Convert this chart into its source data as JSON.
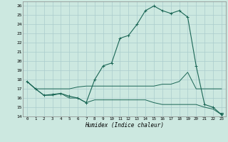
{
  "title": "",
  "xlabel": "Humidex (Indice chaleur)",
  "bg_color": "#cce8e0",
  "grid_color": "#aacccc",
  "line_color": "#1a6655",
  "xlim": [
    -0.5,
    23.5
  ],
  "ylim": [
    14,
    26.5
  ],
  "yticks": [
    14,
    15,
    16,
    17,
    18,
    19,
    20,
    21,
    22,
    23,
    24,
    25,
    26
  ],
  "xticks": [
    0,
    1,
    2,
    3,
    4,
    5,
    6,
    7,
    8,
    9,
    10,
    11,
    12,
    13,
    14,
    15,
    16,
    17,
    18,
    19,
    20,
    21,
    22,
    23
  ],
  "xtick_labels": [
    "0",
    "1",
    "2",
    "3",
    "4",
    "5",
    "6",
    "7",
    "8",
    "9",
    "10",
    "11",
    "12",
    "13",
    "14",
    "15",
    "16",
    "17",
    "18",
    "19",
    "20",
    "21",
    "22",
    "23"
  ],
  "main_line_x": [
    0,
    1,
    2,
    3,
    4,
    5,
    6,
    7,
    8,
    9,
    10,
    11,
    12,
    13,
    14,
    15,
    16,
    17,
    18,
    19,
    20,
    21,
    22,
    23
  ],
  "main_line_y": [
    17.8,
    17.0,
    16.3,
    16.4,
    16.5,
    16.2,
    16.0,
    15.5,
    18.0,
    19.5,
    19.8,
    22.5,
    22.8,
    24.0,
    25.5,
    26.0,
    25.5,
    25.2,
    25.5,
    24.8,
    19.5,
    15.3,
    15.0,
    14.2
  ],
  "upper_line_x": [
    0,
    1,
    2,
    3,
    4,
    5,
    6,
    7,
    8,
    9,
    10,
    11,
    12,
    13,
    14,
    15,
    16,
    17,
    18,
    19,
    20,
    21,
    22,
    23
  ],
  "upper_line_y": [
    17.8,
    17.0,
    17.0,
    17.0,
    17.0,
    17.0,
    17.2,
    17.3,
    17.3,
    17.3,
    17.3,
    17.3,
    17.3,
    17.3,
    17.3,
    17.3,
    17.5,
    17.5,
    17.8,
    18.8,
    17.0,
    17.0,
    17.0,
    17.0
  ],
  "lower_line_x": [
    0,
    1,
    2,
    3,
    4,
    5,
    6,
    7,
    8,
    9,
    10,
    11,
    12,
    13,
    14,
    15,
    16,
    17,
    18,
    19,
    20,
    21,
    22,
    23
  ],
  "lower_line_y": [
    17.8,
    17.0,
    16.3,
    16.3,
    16.5,
    16.0,
    16.0,
    15.5,
    15.8,
    15.8,
    15.8,
    15.8,
    15.8,
    15.8,
    15.8,
    15.5,
    15.3,
    15.3,
    15.3,
    15.3,
    15.3,
    15.0,
    14.8,
    14.2
  ],
  "main_marker": "+",
  "lower_marker": "v",
  "lower_marker_indices": [
    23
  ],
  "figwidth": 3.2,
  "figheight": 2.0,
  "dpi": 100
}
